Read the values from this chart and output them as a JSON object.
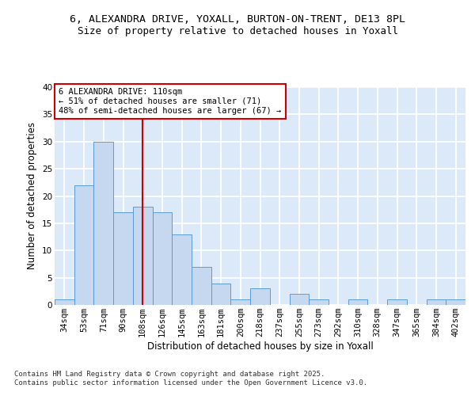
{
  "title_line1": "6, ALEXANDRA DRIVE, YOXALL, BURTON-ON-TRENT, DE13 8PL",
  "title_line2": "Size of property relative to detached houses in Yoxall",
  "xlabel": "Distribution of detached houses by size in Yoxall",
  "ylabel": "Number of detached properties",
  "categories": [
    "34sqm",
    "53sqm",
    "71sqm",
    "90sqm",
    "108sqm",
    "126sqm",
    "145sqm",
    "163sqm",
    "181sqm",
    "200sqm",
    "218sqm",
    "237sqm",
    "255sqm",
    "273sqm",
    "292sqm",
    "310sqm",
    "328sqm",
    "347sqm",
    "365sqm",
    "384sqm",
    "402sqm"
  ],
  "values": [
    1,
    22,
    30,
    17,
    18,
    17,
    13,
    7,
    4,
    1,
    3,
    0,
    2,
    1,
    0,
    1,
    0,
    1,
    0,
    1,
    1
  ],
  "bar_color": "#c5d8f0",
  "bar_edge_color": "#5b9bd5",
  "bar_width": 1.0,
  "property_label": "6 ALEXANDRA DRIVE: 110sqm",
  "annotation_line2": "← 51% of detached houses are smaller (71)",
  "annotation_line3": "48% of semi-detached houses are larger (67) →",
  "vline_color": "#cc0000",
  "vline_x_index": 4,
  "annotation_box_color": "#cc0000",
  "ylim": [
    0,
    40
  ],
  "yticks": [
    0,
    5,
    10,
    15,
    20,
    25,
    30,
    35,
    40
  ],
  "background_color": "#dce9f8",
  "grid_color": "#ffffff",
  "footer": "Contains HM Land Registry data © Crown copyright and database right 2025.\nContains public sector information licensed under the Open Government Licence v3.0.",
  "title_fontsize": 9.5,
  "subtitle_fontsize": 9,
  "tick_fontsize": 7.5,
  "label_fontsize": 8.5,
  "annot_fontsize": 7.5
}
